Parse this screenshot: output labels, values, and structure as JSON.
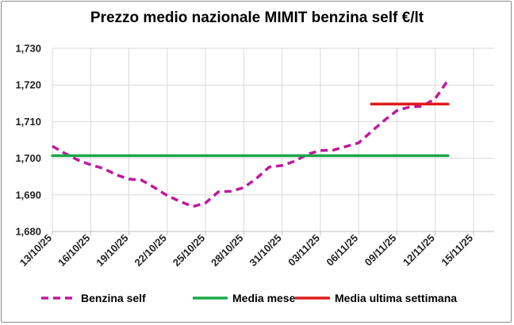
{
  "chart_data": {
    "type": "line",
    "title": "Prezzo medio nazionale MIMIT benzina self €/lt",
    "xlabel": "",
    "ylabel": "",
    "ylim": [
      1.68,
      1.73
    ],
    "yticks": [
      "1,680",
      "1,690",
      "1,700",
      "1,710",
      "1,720",
      "1,730"
    ],
    "xticks": [
      "13/10/25",
      "16/10/25",
      "19/10/25",
      "22/10/25",
      "25/10/25",
      "28/10/25",
      "31/10/25",
      "03/11/25",
      "06/11/25",
      "09/11/25",
      "12/11/25",
      "15/11/25"
    ],
    "grid": true,
    "legend_position": "bottom",
    "series": [
      {
        "name": "Benzina self",
        "color": "#c0199c",
        "style": "dashed",
        "x": [
          "13/10/25",
          "14/10/25",
          "15/10/25",
          "16/10/25",
          "17/10/25",
          "18/10/25",
          "19/10/25",
          "20/10/25",
          "21/10/25",
          "22/10/25",
          "23/10/25",
          "24/10/25",
          "25/10/25",
          "26/10/25",
          "27/10/25",
          "28/10/25",
          "29/10/25",
          "30/10/25",
          "31/10/25",
          "01/11/25",
          "02/11/25",
          "03/11/25",
          "04/11/25",
          "05/11/25",
          "06/11/25",
          "07/11/25",
          "08/11/25",
          "09/11/25",
          "10/11/25",
          "11/11/25",
          "12/11/25",
          "13/11/25"
        ],
        "values": [
          1.7033,
          1.7013,
          1.6995,
          1.6982,
          1.6972,
          1.6955,
          1.6943,
          1.694,
          1.692,
          1.6898,
          1.6882,
          1.6868,
          1.6878,
          1.6908,
          1.691,
          1.692,
          1.6945,
          1.6976,
          1.698,
          1.6992,
          1.7011,
          1.7021,
          1.7022,
          1.7032,
          1.7042,
          1.7073,
          1.7103,
          1.713,
          1.714,
          1.7142,
          1.7163,
          1.7213
        ]
      },
      {
        "name": "Media mese",
        "color": "#1ca84a",
        "style": "solid",
        "x": [
          "13/10/25",
          "13/11/25"
        ],
        "values": [
          1.7007,
          1.7007
        ]
      },
      {
        "name": "Media ultima settimana",
        "color": "#e01b1b",
        "style": "solid",
        "x": [
          "07/11/25",
          "13/11/25"
        ],
        "values": [
          1.7148,
          1.7148
        ]
      }
    ]
  }
}
